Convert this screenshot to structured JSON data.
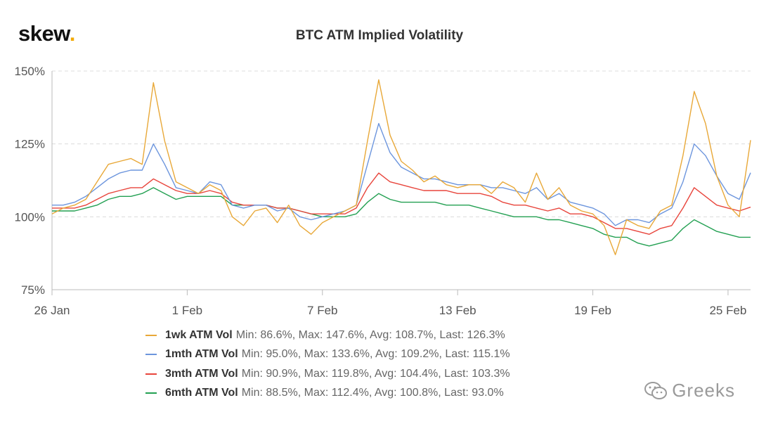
{
  "logo": {
    "text": "skew",
    "dot": "."
  },
  "chart_data": {
    "type": "line",
    "title": "BTC ATM Implied Volatility",
    "xlabel": "",
    "ylabel": "",
    "ylim": [
      75,
      150
    ],
    "yticks": [
      75,
      100,
      125,
      150
    ],
    "ytick_labels": [
      "75%",
      "100%",
      "125%",
      "150%"
    ],
    "xlim": [
      0,
      31
    ],
    "xticks": [
      0,
      6,
      12,
      18,
      24,
      30
    ],
    "xtick_labels": [
      "26 Jan",
      "1 Feb",
      "7 Feb",
      "13 Feb",
      "19 Feb",
      "25 Feb"
    ],
    "grid": "horizontal dashed",
    "legend_position": "bottom",
    "series": [
      {
        "name": "1wk ATM Vol",
        "color": "#e8a838",
        "stats": "Min: 86.6%, Max: 147.6%, Avg: 108.7%, Last: 126.3%",
        "x": [
          0,
          0.5,
          1,
          1.5,
          2,
          2.5,
          3,
          3.5,
          4,
          4.5,
          5,
          5.5,
          6,
          6.5,
          7,
          7.5,
          8,
          8.5,
          9,
          9.5,
          10,
          10.5,
          11,
          11.5,
          12,
          12.5,
          13,
          13.5,
          14,
          14.5,
          15,
          15.5,
          16,
          16.5,
          17,
          17.5,
          18,
          18.5,
          19,
          19.5,
          20,
          20.5,
          21,
          21.5,
          22,
          22.5,
          23,
          23.5,
          24,
          24.5,
          25,
          25.5,
          26,
          26.5,
          27,
          27.5,
          28,
          28.5,
          29,
          29.5,
          30,
          30.5,
          31
        ],
        "values": [
          101,
          103,
          104,
          106,
          112,
          118,
          119,
          120,
          118,
          146,
          126,
          112,
          110,
          108,
          111,
          109,
          100,
          97,
          102,
          103,
          98,
          104,
          97,
          94,
          98,
          100,
          102,
          104,
          126,
          147,
          128,
          119,
          116,
          112,
          114,
          111,
          110,
          111,
          111,
          108,
          112,
          110,
          105,
          115,
          106,
          110,
          104,
          102,
          101,
          97,
          87,
          99,
          97,
          96,
          102,
          104,
          121,
          143,
          132,
          114,
          104,
          100,
          126.3
        ]
      },
      {
        "name": "1mth ATM Vol",
        "color": "#6c95dd",
        "stats": "Min: 95.0%, Max: 133.6%, Avg: 109.2%, Last: 115.1%",
        "x": [
          0,
          0.5,
          1,
          1.5,
          2,
          2.5,
          3,
          3.5,
          4,
          4.5,
          5,
          5.5,
          6,
          6.5,
          7,
          7.5,
          8,
          8.5,
          9,
          9.5,
          10,
          10.5,
          11,
          11.5,
          12,
          12.5,
          13,
          13.5,
          14,
          14.5,
          15,
          15.5,
          16,
          16.5,
          17,
          17.5,
          18,
          18.5,
          19,
          19.5,
          20,
          20.5,
          21,
          21.5,
          22,
          22.5,
          23,
          23.5,
          24,
          24.5,
          25,
          25.5,
          26,
          26.5,
          27,
          27.5,
          28,
          28.5,
          29,
          29.5,
          30,
          30.5,
          31
        ],
        "values": [
          104,
          104,
          105,
          107,
          110,
          113,
          115,
          116,
          116,
          125,
          118,
          110,
          109,
          108,
          112,
          111,
          104,
          103,
          104,
          104,
          102,
          103,
          100,
          99,
          100,
          101,
          102,
          104,
          118,
          132,
          122,
          117,
          115,
          113,
          113,
          112,
          111,
          111,
          111,
          110,
          110,
          109,
          108,
          110,
          106,
          108,
          105,
          104,
          103,
          101,
          97,
          99,
          99,
          98,
          101,
          103,
          112,
          125,
          121,
          114,
          108,
          106,
          115.1
        ]
      },
      {
        "name": "3mth ATM Vol",
        "color": "#e8453c",
        "stats": "Min: 90.9%, Max: 119.8%, Avg: 104.4%, Last: 103.3%",
        "x": [
          0,
          0.5,
          1,
          1.5,
          2,
          2.5,
          3,
          3.5,
          4,
          4.5,
          5,
          5.5,
          6,
          6.5,
          7,
          7.5,
          8,
          8.5,
          9,
          9.5,
          10,
          10.5,
          11,
          11.5,
          12,
          12.5,
          13,
          13.5,
          14,
          14.5,
          15,
          15.5,
          16,
          16.5,
          17,
          17.5,
          18,
          18.5,
          19,
          19.5,
          20,
          20.5,
          21,
          21.5,
          22,
          22.5,
          23,
          23.5,
          24,
          24.5,
          25,
          25.5,
          26,
          26.5,
          27,
          27.5,
          28,
          28.5,
          29,
          29.5,
          30,
          30.5,
          31
        ],
        "values": [
          103,
          103,
          103,
          104,
          106,
          108,
          109,
          110,
          110,
          113,
          111,
          109,
          108,
          108,
          109,
          108,
          105,
          104,
          104,
          104,
          103,
          103,
          102,
          101,
          101,
          101,
          101,
          103,
          110,
          115,
          112,
          111,
          110,
          109,
          109,
          109,
          108,
          108,
          108,
          107,
          105,
          104,
          104,
          103,
          102,
          103,
          101,
          101,
          100,
          98,
          96,
          96,
          95,
          94,
          96,
          97,
          103,
          110,
          107,
          104,
          103,
          102,
          103.3
        ]
      },
      {
        "name": "6mth ATM Vol",
        "color": "#23a052",
        "stats": "Min: 88.5%, Max: 112.4%, Avg: 100.8%, Last: 93.0%",
        "x": [
          0,
          0.5,
          1,
          1.5,
          2,
          2.5,
          3,
          3.5,
          4,
          4.5,
          5,
          5.5,
          6,
          6.5,
          7,
          7.5,
          8,
          8.5,
          9,
          9.5,
          10,
          10.5,
          11,
          11.5,
          12,
          12.5,
          13,
          13.5,
          14,
          14.5,
          15,
          15.5,
          16,
          16.5,
          17,
          17.5,
          18,
          18.5,
          19,
          19.5,
          20,
          20.5,
          21,
          21.5,
          22,
          22.5,
          23,
          23.5,
          24,
          24.5,
          25,
          25.5,
          26,
          26.5,
          27,
          27.5,
          28,
          28.5,
          29,
          29.5,
          30,
          30.5,
          31
        ],
        "values": [
          102,
          102,
          102,
          103,
          104,
          106,
          107,
          107,
          108,
          110,
          108,
          106,
          107,
          107,
          107,
          107,
          104,
          104,
          104,
          104,
          103,
          103,
          102,
          101,
          100,
          100,
          100,
          101,
          105,
          108,
          106,
          105,
          105,
          105,
          105,
          104,
          104,
          104,
          103,
          102,
          101,
          100,
          100,
          100,
          99,
          99,
          98,
          97,
          96,
          94,
          93,
          93,
          91,
          90,
          91,
          92,
          96,
          99,
          97,
          95,
          94,
          93,
          93.0
        ]
      }
    ]
  },
  "watermark": {
    "text": "Greeks",
    "icon": "wechat-icon"
  }
}
